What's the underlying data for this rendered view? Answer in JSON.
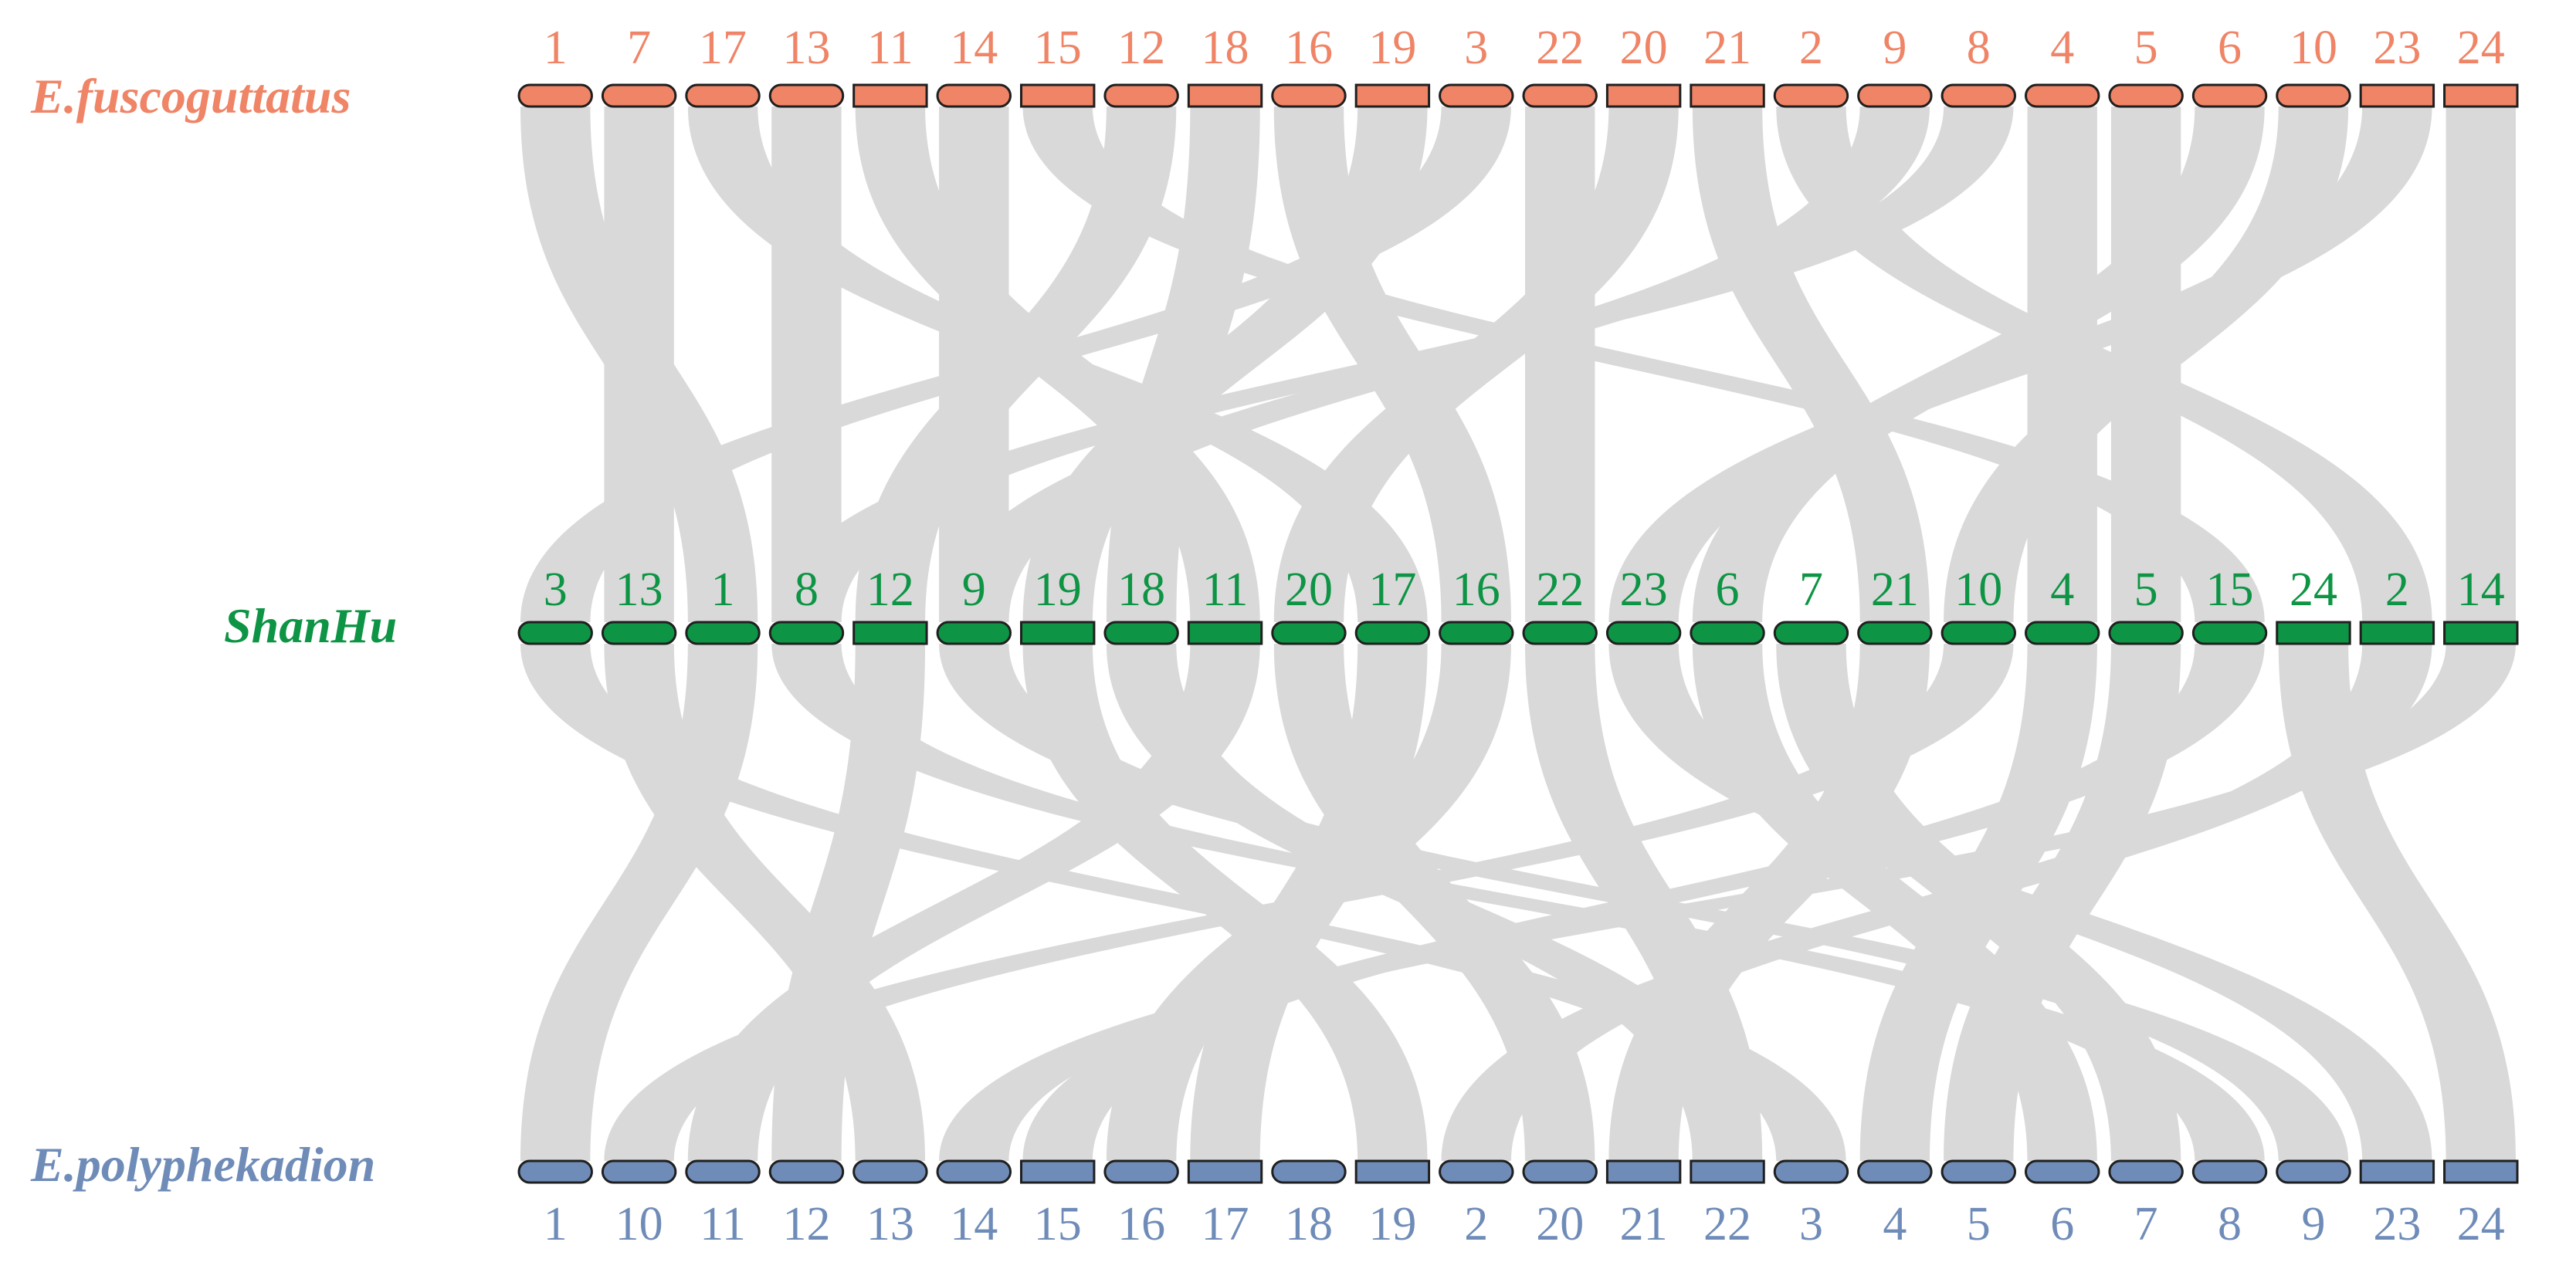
{
  "genomes": [
    {
      "name": "E.fuscoguttatus",
      "color": "#ef8466",
      "chromosomes": [
        {
          "label": "1",
          "rounded": true
        },
        {
          "label": "7",
          "rounded": true
        },
        {
          "label": "17",
          "rounded": true
        },
        {
          "label": "13",
          "rounded": true
        },
        {
          "label": "11",
          "rounded": false
        },
        {
          "label": "14",
          "rounded": true
        },
        {
          "label": "15",
          "rounded": false
        },
        {
          "label": "12",
          "rounded": true
        },
        {
          "label": "18",
          "rounded": false
        },
        {
          "label": "16",
          "rounded": true
        },
        {
          "label": "19",
          "rounded": false
        },
        {
          "label": "3",
          "rounded": true
        },
        {
          "label": "22",
          "rounded": true
        },
        {
          "label": "20",
          "rounded": false
        },
        {
          "label": "21",
          "rounded": false
        },
        {
          "label": "2",
          "rounded": true
        },
        {
          "label": "9",
          "rounded": true
        },
        {
          "label": "8",
          "rounded": true
        },
        {
          "label": "4",
          "rounded": true
        },
        {
          "label": "5",
          "rounded": true
        },
        {
          "label": "6",
          "rounded": true
        },
        {
          "label": "10",
          "rounded": true
        },
        {
          "label": "23",
          "rounded": false
        },
        {
          "label": "24",
          "rounded": false
        }
      ]
    },
    {
      "name": "ShanHu",
      "color": "#0d9444",
      "chromosomes": [
        {
          "label": "3",
          "rounded": true
        },
        {
          "label": "13",
          "rounded": true
        },
        {
          "label": "1",
          "rounded": true
        },
        {
          "label": "8",
          "rounded": true
        },
        {
          "label": "12",
          "rounded": false
        },
        {
          "label": "9",
          "rounded": true
        },
        {
          "label": "19",
          "rounded": false
        },
        {
          "label": "18",
          "rounded": true
        },
        {
          "label": "11",
          "rounded": false
        },
        {
          "label": "20",
          "rounded": true
        },
        {
          "label": "17",
          "rounded": true
        },
        {
          "label": "16",
          "rounded": true
        },
        {
          "label": "22",
          "rounded": true
        },
        {
          "label": "23",
          "rounded": true
        },
        {
          "label": "6",
          "rounded": true
        },
        {
          "label": "7",
          "rounded": true
        },
        {
          "label": "21",
          "rounded": true
        },
        {
          "label": "10",
          "rounded": true
        },
        {
          "label": "4",
          "rounded": true
        },
        {
          "label": "5",
          "rounded": true
        },
        {
          "label": "15",
          "rounded": true
        },
        {
          "label": "24",
          "rounded": false
        },
        {
          "label": "2",
          "rounded": false
        },
        {
          "label": "14",
          "rounded": false
        }
      ]
    },
    {
      "name": "E.polyphekadion",
      "color": "#6f8cb8",
      "chromosomes": [
        {
          "label": "1",
          "rounded": true
        },
        {
          "label": "10",
          "rounded": true
        },
        {
          "label": "11",
          "rounded": true
        },
        {
          "label": "12",
          "rounded": true
        },
        {
          "label": "13",
          "rounded": true
        },
        {
          "label": "14",
          "rounded": true
        },
        {
          "label": "15",
          "rounded": false
        },
        {
          "label": "16",
          "rounded": true
        },
        {
          "label": "17",
          "rounded": false
        },
        {
          "label": "18",
          "rounded": true
        },
        {
          "label": "19",
          "rounded": false
        },
        {
          "label": "2",
          "rounded": true
        },
        {
          "label": "20",
          "rounded": true
        },
        {
          "label": "21",
          "rounded": false
        },
        {
          "label": "22",
          "rounded": false
        },
        {
          "label": "3",
          "rounded": true
        },
        {
          "label": "4",
          "rounded": true
        },
        {
          "label": "5",
          "rounded": true
        },
        {
          "label": "6",
          "rounded": true
        },
        {
          "label": "7",
          "rounded": true
        },
        {
          "label": "8",
          "rounded": true
        },
        {
          "label": "9",
          "rounded": true
        },
        {
          "label": "23",
          "rounded": false
        },
        {
          "label": "24",
          "rounded": false
        }
      ]
    }
  ],
  "ribbon_color": "#d9d9d9",
  "links": [
    {
      "from": 0,
      "to": 1,
      "pairs": [
        [
          0,
          2
        ],
        [
          1,
          1
        ],
        [
          2,
          10
        ],
        [
          3,
          3
        ],
        [
          4,
          8
        ],
        [
          5,
          5
        ],
        [
          6,
          20
        ],
        [
          7,
          4
        ],
        [
          8,
          7
        ],
        [
          9,
          11
        ],
        [
          10,
          6
        ],
        [
          11,
          0
        ],
        [
          12,
          12
        ],
        [
          13,
          9
        ],
        [
          14,
          16
        ],
        [
          15,
          22
        ],
        [
          16,
          5
        ],
        [
          17,
          3
        ],
        [
          18,
          18
        ],
        [
          19,
          19
        ],
        [
          20,
          14
        ],
        [
          21,
          17
        ],
        [
          22,
          13
        ],
        [
          23,
          23
        ]
      ]
    },
    {
      "from": 1,
      "to": 2,
      "pairs": [
        [
          0,
          15
        ],
        [
          1,
          4
        ],
        [
          2,
          0
        ],
        [
          3,
          20
        ],
        [
          4,
          3
        ],
        [
          5,
          21
        ],
        [
          6,
          10
        ],
        [
          7,
          14
        ],
        [
          8,
          2
        ],
        [
          9,
          12
        ],
        [
          10,
          8
        ],
        [
          11,
          7
        ],
        [
          12,
          14
        ],
        [
          13,
          22
        ],
        [
          14,
          18
        ],
        [
          15,
          19
        ],
        [
          16,
          13
        ],
        [
          17,
          1
        ],
        [
          18,
          16
        ],
        [
          19,
          17
        ],
        [
          20,
          6
        ],
        [
          21,
          23
        ],
        [
          22,
          11
        ],
        [
          23,
          5
        ]
      ]
    }
  ]
}
